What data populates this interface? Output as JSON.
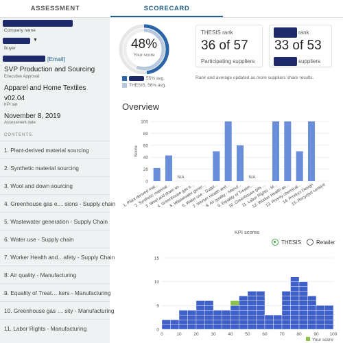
{
  "tabs": [
    {
      "label": "ASSESSMENT",
      "active": false
    },
    {
      "label": "SCORECARD",
      "active": true
    }
  ],
  "sidebar": {
    "company_label": "Company name",
    "role_label": "Buyer",
    "email_link": "[Email]",
    "company_title": "SVP Production and Sourcing",
    "approval_label": "Executive Approval",
    "kpi_set_name": "Apparel and Home Textiles",
    "version": "v02.04",
    "version_label": "KPI set",
    "assessment_date": "November 8, 2019",
    "assessment_date_label": "Assessment date",
    "contents_heading": "CONTENTS",
    "toc": [
      "1. Plant-derived material sourcing",
      "2. Synthetic material sourcing",
      "3. Wool and down sourcing",
      "4. Greenhouse gas e… sions - Supply chain",
      "5. Wastewater generation - Supply Chain",
      "6. Water use - Supply chain",
      "7. Worker Health and…afety - Supply Chain",
      "8. Air quality - Manufacturing",
      "9. Equality of Treat… kers - Manufacturing",
      "10. Greenhouse gas … sity - Manufacturing",
      "11. Labor Rights - Manufacturing"
    ]
  },
  "score": {
    "percent_text": "48%",
    "percent_value": 48,
    "label": "Your score",
    "legend": [
      {
        "text": "55% avg.",
        "color": "#2b65a8"
      },
      {
        "text": "THESIS, 56% avg.",
        "color": "#b8c9de"
      }
    ]
  },
  "ranks": [
    {
      "title": "THESIS rank",
      "value": "36 of 57",
      "sub": "Participating suppliers"
    },
    {
      "title": "rank",
      "value": "33 of 53",
      "sub": "suppliers"
    }
  ],
  "rank_note": "Rank and average updated as more suppliers share results.",
  "overview_title": "Overview",
  "toggle": {
    "options": [
      "THESIS",
      "Retailer"
    ],
    "selected": "THESIS"
  },
  "colors": {
    "bar": "#6b8edb",
    "hist": "#3f5fc9",
    "highlight": "#8bc34a",
    "accent": "#1f5f8b"
  },
  "chart_data": [
    {
      "type": "bar",
      "title": "Overview",
      "xlabel": "KPI scores",
      "ylabel": "Score",
      "ylim": [
        0,
        100
      ],
      "yticks": [
        0,
        20,
        40,
        60,
        80,
        100
      ],
      "grid": true,
      "categories": [
        "1. Plant-derived mat…",
        "2. Synthetic material…",
        "3. Wool and down so…",
        "4. Greenhouse gas e…",
        "5. Wastewater gener…",
        "6. Water use - Suppl…",
        "7. Worker Health and…",
        "8. Air quality - Manuf…",
        "9. Equality of Treatm…",
        "10. Greenhouse gas …",
        "11. Labor Rights - M…",
        "12. Worker Health an…",
        "13. Priority chemical…",
        "14. Product Design",
        "15. Recycled content"
      ],
      "values": [
        22,
        43,
        null,
        null,
        null,
        50,
        100,
        60,
        null,
        null,
        100,
        100,
        50,
        100,
        null
      ],
      "na_label": "N/A",
      "na_indices": [
        2,
        8
      ]
    },
    {
      "type": "bar",
      "title": "",
      "xlabel": "",
      "ylabel": "",
      "ylim": [
        0,
        15
      ],
      "yticks": [
        0,
        5,
        10,
        15
      ],
      "xticks": [
        0,
        10,
        20,
        30,
        40,
        50,
        60,
        70,
        80,
        90,
        100
      ],
      "grid": true,
      "bin_width": 5,
      "bins": [
        0,
        5,
        10,
        15,
        20,
        25,
        30,
        35,
        40,
        45,
        50,
        55,
        60,
        65,
        70,
        75,
        80,
        85,
        90,
        95
      ],
      "counts": [
        2,
        2,
        4,
        4,
        6,
        6,
        4,
        4,
        6,
        7,
        8,
        8,
        3,
        3,
        8,
        11,
        10,
        7,
        5,
        5
      ],
      "highlight_bin": 40,
      "legend": "Your score",
      "legend_position": "bottom-right"
    }
  ]
}
